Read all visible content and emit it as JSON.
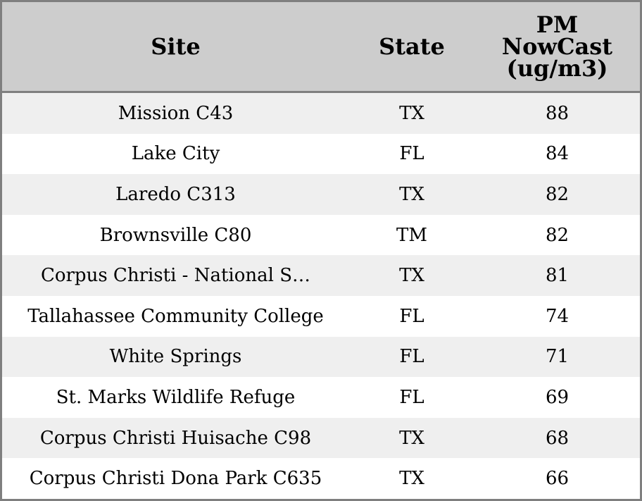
{
  "chart_data": {
    "type": "table",
    "columns": [
      "Site",
      "State",
      "PM NowCast (ug/m3)"
    ],
    "header_lines": [
      [
        "Site"
      ],
      [
        "State"
      ],
      [
        "PM",
        "NowCast",
        "(ug/m3)"
      ]
    ],
    "rows": [
      [
        "Mission C43",
        "TX",
        "88"
      ],
      [
        "Lake City",
        "FL",
        "84"
      ],
      [
        "Laredo C313",
        "TX",
        "82"
      ],
      [
        "Brownsville C80",
        "TM",
        "82"
      ],
      [
        "Corpus Christi - National S…",
        "TX",
        "81"
      ],
      [
        "Tallahassee Community College",
        "FL",
        "74"
      ],
      [
        "White Springs",
        "FL",
        "71"
      ],
      [
        "St. Marks Wildlife Refuge",
        "FL",
        "69"
      ],
      [
        "Corpus Christi Huisache C98",
        "TX",
        "68"
      ],
      [
        "Corpus Christi Dona Park C635",
        "TX",
        "66"
      ]
    ]
  },
  "colors": {
    "header_bg": "#cdcdcd",
    "row_alt_bg": "#efefef",
    "row_bg": "#ffffff",
    "border": "#7f7f7f"
  }
}
